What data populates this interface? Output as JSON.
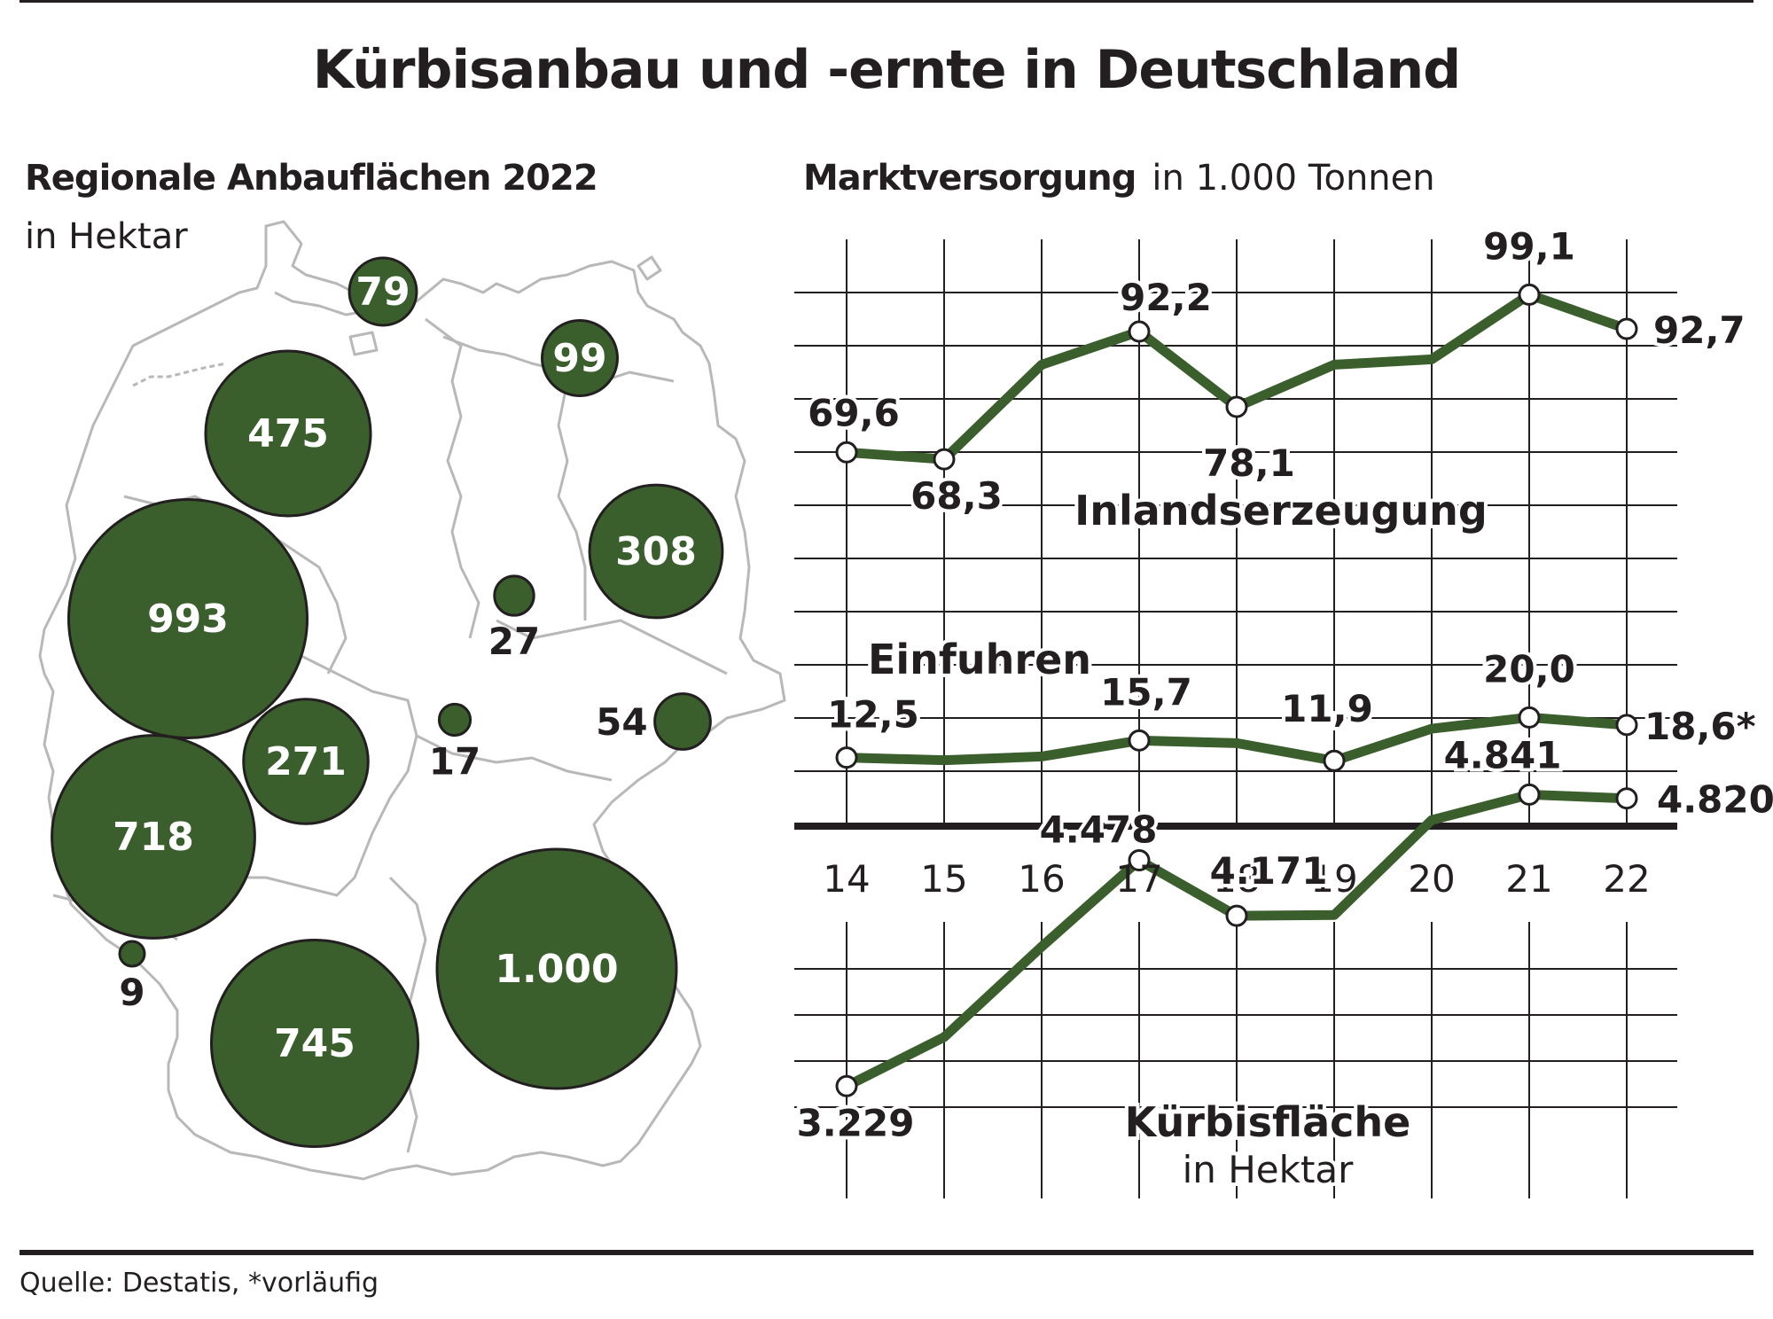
{
  "title": "Kürbisanbau und -ernte in Deutschland",
  "source": "Quelle: Destatis, *vorläufig",
  "colors": {
    "series": "#3a5e2c",
    "grid": "#231f20",
    "map_border": "#b8b8b8"
  },
  "map": {
    "title": "Regionale Anbauflächen 2022",
    "unit": "in Hektar",
    "regions": [
      {
        "label": "79",
        "value": 79,
        "label_inside": true
      },
      {
        "label": "99",
        "value": 99,
        "label_inside": true
      },
      {
        "label": "475",
        "value": 475,
        "label_inside": true
      },
      {
        "label": "308",
        "value": 308,
        "label_inside": true
      },
      {
        "label": "993",
        "value": 993,
        "label_inside": true
      },
      {
        "label": "27",
        "value": 27,
        "label_inside": false
      },
      {
        "label": "271",
        "value": 271,
        "label_inside": true
      },
      {
        "label": "17",
        "value": 17,
        "label_inside": false
      },
      {
        "label": "54",
        "value": 54,
        "label_inside": false
      },
      {
        "label": "718",
        "value": 718,
        "label_inside": true
      },
      {
        "label": "9",
        "value": 9,
        "label_inside": false
      },
      {
        "label": "745",
        "value": 745,
        "label_inside": true
      },
      {
        "label": "1.000",
        "value": 1000,
        "label_inside": true
      }
    ]
  },
  "chart": {
    "title": "Marktversorgung",
    "unit": "in 1.000 Tonnen"
  },
  "chart_data": [
    {
      "type": "line",
      "x": [
        "14",
        "15",
        "16",
        "17",
        "18",
        "19",
        "20",
        "21",
        "22"
      ],
      "ylim": [
        0,
        110
      ],
      "series": [
        {
          "name": "Inlandserzeugung",
          "values": [
            69.6,
            68.3,
            86.0,
            92.2,
            78.1,
            86.0,
            87.0,
            99.1,
            92.7
          ],
          "labels": [
            "69,6",
            "68,3",
            "",
            "92,2",
            "78,1",
            "",
            "",
            "99,1",
            "92,7"
          ]
        },
        {
          "name": "Einfuhren",
          "values": [
            12.5,
            12.0,
            12.7,
            15.7,
            15.2,
            11.9,
            17.9,
            20.0,
            18.6
          ],
          "labels": [
            "12,5",
            "",
            "",
            "15,7",
            "",
            "11,9",
            "",
            "20,0",
            "18,6*"
          ]
        }
      ]
    },
    {
      "type": "line",
      "title": "Kürbisfläche",
      "unit": "in Hektar",
      "x": [
        "14",
        "15",
        "16",
        "17",
        "18",
        "19",
        "20",
        "21",
        "22"
      ],
      "series": [
        {
          "name": "Kürbisfläche",
          "values": [
            3229,
            3500,
            4000,
            4478,
            4171,
            4175,
            4700,
            4841,
            4820
          ],
          "labels": [
            "3.229",
            "",
            "",
            "4.478",
            "4.171",
            "",
            "",
            "4.841",
            "4.820"
          ]
        }
      ]
    }
  ]
}
